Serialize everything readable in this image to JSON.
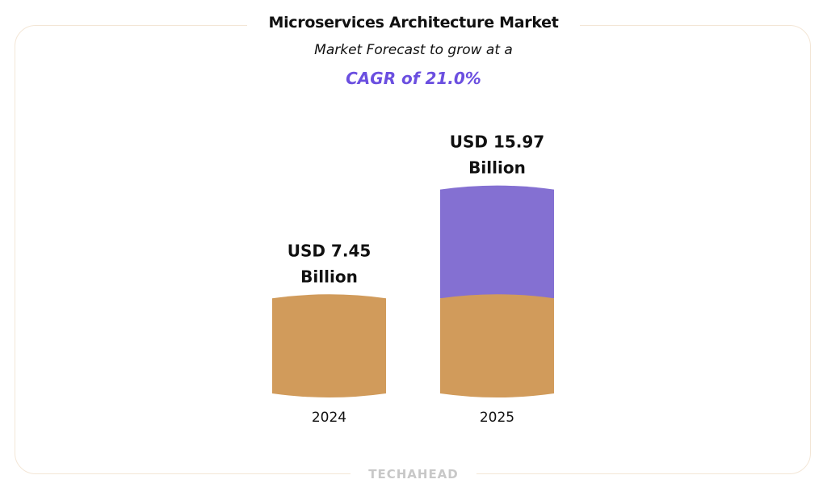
{
  "chart_data": {
    "type": "bar",
    "title": "Microservices Architecture Market",
    "subtitle": "Market Forecast to grow at a",
    "cagr_label": "CAGR of 21.0%",
    "categories": [
      "2024",
      "2025"
    ],
    "values": [
      7.45,
      15.97
    ],
    "value_labels": [
      [
        "USD 7.45",
        "Billion"
      ],
      [
        "USD 15.97",
        "Billion"
      ]
    ],
    "unit": "USD Billion",
    "xlabel": "",
    "ylabel": "",
    "grid": false,
    "colors": {
      "base": "#d19b5b",
      "growth": "#8470d2",
      "accent": "#6b4fe0"
    }
  },
  "footer": {
    "brand": "TECHAHEAD"
  }
}
